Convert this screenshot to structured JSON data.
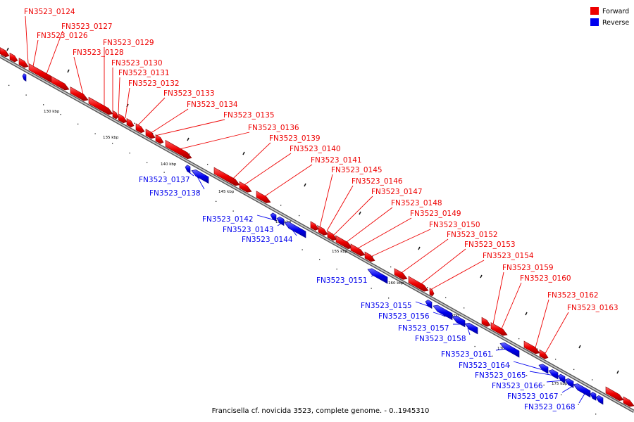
{
  "caption": "Francisella cf. novicida 3523, complete genome. - 0..1945310",
  "legend": [
    {
      "label": "Forward",
      "color": "#ee0000"
    },
    {
      "label": "Reverse",
      "color": "#0000ee"
    }
  ],
  "colors": {
    "forward": "#ee0000",
    "reverse": "#0000ee",
    "backbone": "#888888"
  },
  "kbp_ticks": [
    "130 kbp",
    "135 kbp",
    "140 kbp",
    "145 kbp",
    "150 kbp",
    "155 kbp",
    "160 kbp",
    "165 kbp",
    "170 kbp",
    "175 kbp"
  ],
  "forward_genes": [
    "FN3523_0124",
    "FN3523_0127",
    "FN3523_0126",
    "FN3523_0129",
    "FN3523_0128",
    "FN3523_0130",
    "FN3523_0131",
    "FN3523_0132",
    "FN3523_0133",
    "FN3523_0134",
    "FN3523_0135",
    "FN3523_0136",
    "FN3523_0139",
    "FN3523_0140",
    "FN3523_0141",
    "FN3523_0145",
    "FN3523_0146",
    "FN3523_0147",
    "FN3523_0148",
    "FN3523_0149",
    "FN3523_0150",
    "FN3523_0152",
    "FN3523_0153",
    "FN3523_0154",
    "FN3523_0159",
    "FN3523_0160",
    "FN3523_0162",
    "FN3523_0163"
  ],
  "reverse_genes": [
    "FN3523_0137",
    "FN3523_0138",
    "FN3523_0142",
    "FN3523_0143",
    "FN3523_0144",
    "FN3523_0151",
    "FN3523_0155",
    "FN3523_0156",
    "FN3523_0157",
    "FN3523_0158",
    "FN3523_0161",
    "FN3523_0164",
    "FN3523_0165",
    "FN3523_0166",
    "FN3523_0167",
    "FN3523_0168"
  ]
}
